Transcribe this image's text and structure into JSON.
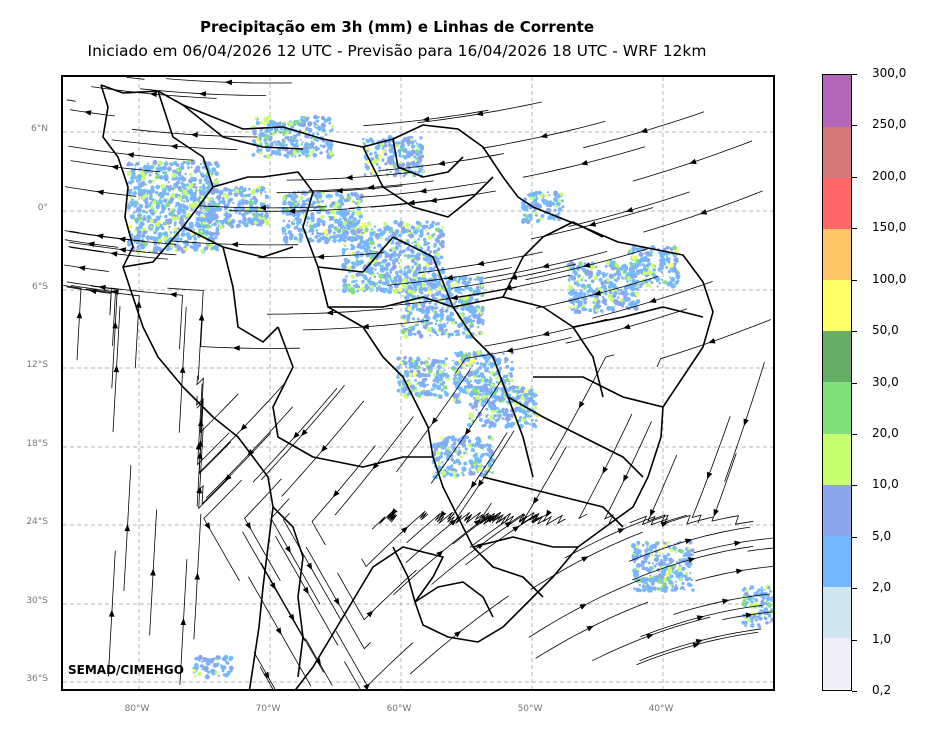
{
  "title": "Precipitação em 3h (mm) e Linhas de Corrente",
  "subtitle": "Iniciado em 06/04/2026 12 UTC - Previsão para 16/04/2026 18 UTC - WRF 12km",
  "credit": "SEMAD/CIMEHGO",
  "lat_labels": [
    "6°N",
    "0°",
    "6°S",
    "12°S",
    "18°S",
    "24°S",
    "30°S",
    "36°S"
  ],
  "lon_labels": [
    "80°W",
    "70°W",
    "60°W",
    "50°W",
    "40°W"
  ],
  "colorbar": {
    "labels": [
      "0,2",
      "1,0",
      "2,0",
      "5,0",
      "10,0",
      "20,0",
      "30,0",
      "50,0",
      "100,0",
      "150,0",
      "200,0",
      "250,0",
      "300,0"
    ],
    "colors": [
      "#efeffb",
      "#cfe6ee",
      "#74b9ff",
      "#8ba6ef",
      "#c8ff71",
      "#7fe07c",
      "#66ad66",
      "#ffff66",
      "#ffc566",
      "#ff6666",
      "#d4787a",
      "#b266b8"
    ]
  }
}
